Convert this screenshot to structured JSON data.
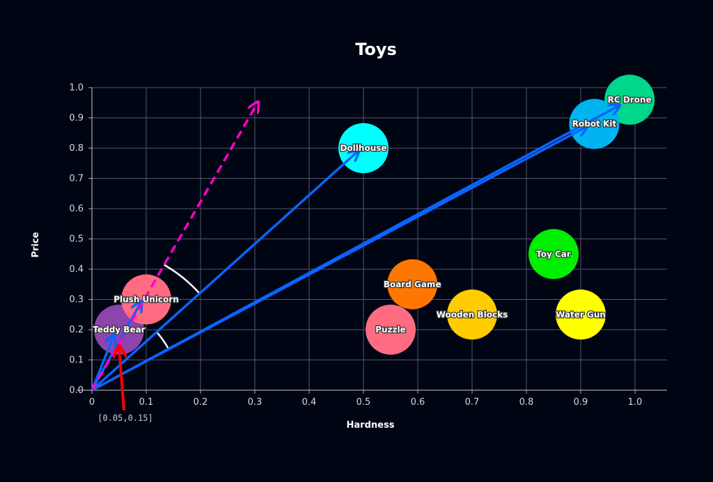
{
  "chart_data": {
    "type": "scatter",
    "title": "Toys",
    "xlabel": "Hardness",
    "ylabel": "Price",
    "xlim": [
      0,
      1.0
    ],
    "ylim": [
      0,
      1.0
    ],
    "xticks": [
      "0",
      "0.1",
      "0.2",
      "0.3",
      "0.4",
      "0.5",
      "0.6",
      "0.7",
      "0.8",
      "0.9",
      "1.0"
    ],
    "yticks": [
      "0.0",
      "0.1",
      "0.2",
      "0.3",
      "0.4",
      "0.5",
      "0.6",
      "0.7",
      "0.8",
      "0.9",
      "1.0"
    ],
    "grid": true,
    "points": [
      {
        "name": "Teddy Bear",
        "x": 0.05,
        "y": 0.2,
        "color": "#8e44ad"
      },
      {
        "name": "Plush Unicorn",
        "x": 0.1,
        "y": 0.3,
        "color": "#ff6b81"
      },
      {
        "name": "Dollhouse",
        "x": 0.5,
        "y": 0.8,
        "color": "#00ffff"
      },
      {
        "name": "RC Drone",
        "x": 0.99,
        "y": 0.96,
        "color": "#00d78a"
      },
      {
        "name": "Robot Kit",
        "x": 0.925,
        "y": 0.88,
        "color": "#00b4f0"
      },
      {
        "name": "Toy Car",
        "x": 0.85,
        "y": 0.45,
        "color": "#00ee00"
      },
      {
        "name": "Water Gun",
        "x": 0.9,
        "y": 0.25,
        "color": "#ffff00"
      },
      {
        "name": "Wooden Blocks",
        "x": 0.7,
        "y": 0.25,
        "color": "#ffcc00"
      },
      {
        "name": "Board Game",
        "x": 0.59,
        "y": 0.35,
        "color": "#ff7700"
      },
      {
        "name": "Puzzle",
        "x": 0.55,
        "y": 0.2,
        "color": "#ff6b81"
      }
    ],
    "vectors": [
      {
        "to": [
          0.04,
          0.18
        ],
        "color": "#0a64ff"
      },
      {
        "to": [
          0.09,
          0.29
        ],
        "color": "#0a64ff"
      },
      {
        "to": [
          0.49,
          0.79
        ],
        "color": "#0a64ff"
      },
      {
        "to": [
          0.91,
          0.87
        ],
        "color": "#0a64ff"
      },
      {
        "to": [
          0.97,
          0.94
        ],
        "color": "#0a64ff"
      }
    ],
    "dashed_vector": {
      "to": [
        0.305,
        0.95
      ],
      "color": "#ff00cc"
    },
    "annotation": {
      "text": "[0.05,0.15]",
      "point": [
        0.05,
        0.15
      ],
      "color": "#ff0000"
    }
  }
}
